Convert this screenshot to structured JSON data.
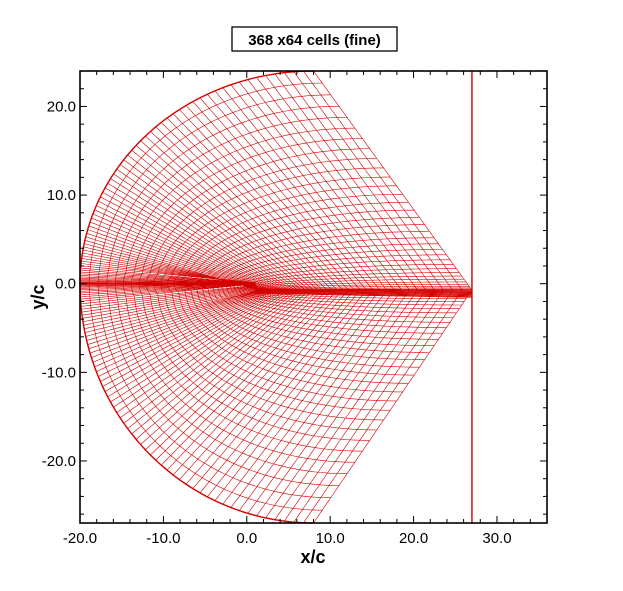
{
  "chart_data": {
    "type": "line",
    "title": "368 x64 cells (fine)",
    "xlabel": "x/c",
    "ylabel": "y/c",
    "xlim": [
      -20.0,
      36.0
    ],
    "ylim": [
      -27.0,
      24.0
    ],
    "xticks": [
      "-20.0",
      "-10.0",
      "0.0",
      "10.0",
      "20.0",
      "30.0"
    ],
    "xtick_values": [
      -20,
      -10,
      0,
      10,
      20,
      30
    ],
    "yticks": [
      "20.0",
      "10.0",
      "0.0",
      "-10.0",
      "-20.0"
    ],
    "ytick_values": [
      20,
      10,
      0,
      -10,
      -20
    ],
    "grid": false,
    "mesh": {
      "cells_i": 368,
      "cells_j": 64,
      "outer_boundary": {
        "center_x": 8.0,
        "outer_radius_x": 28.0,
        "upper_radius_y": 24.0,
        "lower_radius_y": 27.0,
        "top_right": [
          27.0,
          24.0
        ],
        "bottom_right": [
          27.0,
          -27.0
        ]
      },
      "outflow_x": 27.0,
      "airfoil_leading_edge": [
        0.0,
        0.0
      ],
      "airfoil_trailing_edge": [
        1.0,
        0.0
      ],
      "wake_y": -1.2
    },
    "color": "#d40000"
  }
}
